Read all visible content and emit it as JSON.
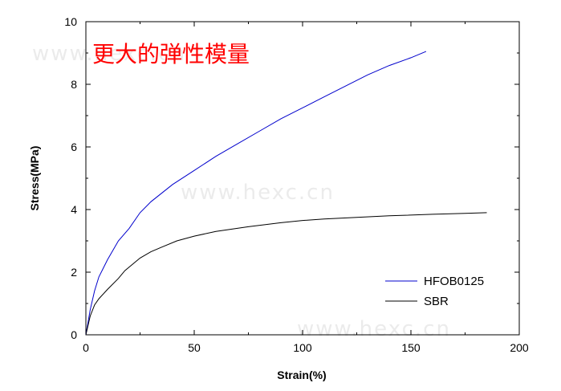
{
  "chart_data": {
    "type": "line",
    "title": "",
    "annotation": "更大的弹性模量",
    "xlabel": "Strain(%)",
    "ylabel": "Stress(MPa)",
    "xlim": [
      0,
      200
    ],
    "ylim": [
      0,
      10
    ],
    "x_ticks": [
      0,
      50,
      100,
      150,
      200
    ],
    "y_ticks": [
      0,
      2,
      4,
      6,
      8,
      10
    ],
    "grid": false,
    "legend_position": "bottom-right",
    "watermark": "www.hexc.cn",
    "series": [
      {
        "name": "HFOB0125",
        "color": "#0000cc",
        "points": [
          [
            0,
            0
          ],
          [
            1,
            0.4
          ],
          [
            2,
            0.8
          ],
          [
            4,
            1.4
          ],
          [
            6,
            1.85
          ],
          [
            10,
            2.4
          ],
          [
            15,
            3.0
          ],
          [
            20,
            3.4
          ],
          [
            25,
            3.9
          ],
          [
            30,
            4.25
          ],
          [
            40,
            4.8
          ],
          [
            50,
            5.25
          ],
          [
            60,
            5.7
          ],
          [
            70,
            6.1
          ],
          [
            80,
            6.5
          ],
          [
            90,
            6.9
          ],
          [
            100,
            7.25
          ],
          [
            110,
            7.6
          ],
          [
            120,
            7.95
          ],
          [
            130,
            8.3
          ],
          [
            140,
            8.6
          ],
          [
            150,
            8.85
          ],
          [
            157,
            9.05
          ]
        ]
      },
      {
        "name": "SBR",
        "color": "#000000",
        "points": [
          [
            0,
            0
          ],
          [
            1,
            0.3
          ],
          [
            2,
            0.6
          ],
          [
            4,
            0.95
          ],
          [
            6,
            1.15
          ],
          [
            10,
            1.45
          ],
          [
            15,
            1.8
          ],
          [
            18,
            2.05
          ],
          [
            25,
            2.45
          ],
          [
            30,
            2.65
          ],
          [
            35,
            2.8
          ],
          [
            42,
            3.0
          ],
          [
            50,
            3.15
          ],
          [
            60,
            3.3
          ],
          [
            75,
            3.45
          ],
          [
            90,
            3.58
          ],
          [
            100,
            3.65
          ],
          [
            110,
            3.7
          ],
          [
            125,
            3.75
          ],
          [
            140,
            3.8
          ],
          [
            160,
            3.85
          ],
          [
            175,
            3.88
          ],
          [
            185,
            3.9
          ]
        ]
      }
    ]
  }
}
